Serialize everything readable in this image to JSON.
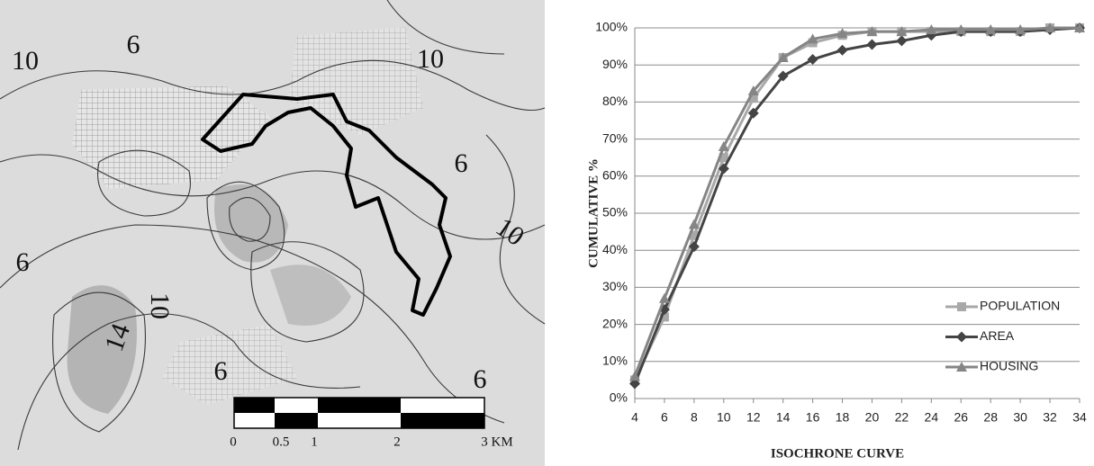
{
  "map": {
    "contour_labels": [
      "10",
      "6",
      "10",
      "6",
      "10",
      "6",
      "10",
      "14",
      "6",
      "6"
    ],
    "scale_labels": [
      "0",
      "0.5",
      "1",
      "2",
      "3 KM"
    ]
  },
  "chart_data": {
    "type": "line",
    "x_label": "ISOCHRONE CURVE",
    "y_label": "CUMULATIVE %",
    "x": [
      4,
      6,
      8,
      10,
      12,
      14,
      16,
      18,
      20,
      22,
      24,
      26,
      28,
      30,
      32,
      34
    ],
    "xlim": [
      4,
      34
    ],
    "xticks": [
      4,
      6,
      8,
      10,
      12,
      14,
      16,
      18,
      20,
      22,
      24,
      26,
      28,
      30,
      32,
      34
    ],
    "ylim": [
      0,
      100
    ],
    "yticks": [
      {
        "value": 0,
        "label": "0%"
      },
      {
        "value": 10,
        "label": "10%"
      },
      {
        "value": 20,
        "label": "20%"
      },
      {
        "value": 30,
        "label": "30%"
      },
      {
        "value": 40,
        "label": "40%"
      },
      {
        "value": 50,
        "label": "50%"
      },
      {
        "value": 60,
        "label": "60%"
      },
      {
        "value": 70,
        "label": "70%"
      },
      {
        "value": 80,
        "label": "80%"
      },
      {
        "value": 90,
        "label": "90%"
      },
      {
        "value": 100,
        "label": "100%"
      }
    ],
    "grid": true,
    "legend": "lower right",
    "series": [
      {
        "name": "POPULATION",
        "color": "#a8a8a8",
        "marker": "square",
        "values": [
          5,
          22,
          44,
          65,
          81,
          92,
          96,
          98,
          99,
          99,
          99,
          99,
          99,
          99,
          100,
          100
        ]
      },
      {
        "name": "AREA",
        "color": "#444444",
        "marker": "diamond",
        "values": [
          4,
          24,
          41,
          62,
          77,
          87,
          91.5,
          94,
          95.5,
          96.5,
          98,
          99,
          99,
          99,
          99.5,
          100
        ]
      },
      {
        "name": "HOUSING",
        "color": "#858585",
        "marker": "triangle",
        "values": [
          6,
          27,
          47,
          68,
          83,
          92,
          97,
          98.5,
          99,
          99,
          99.5,
          99.5,
          99.5,
          99.5,
          100,
          100
        ]
      }
    ]
  }
}
